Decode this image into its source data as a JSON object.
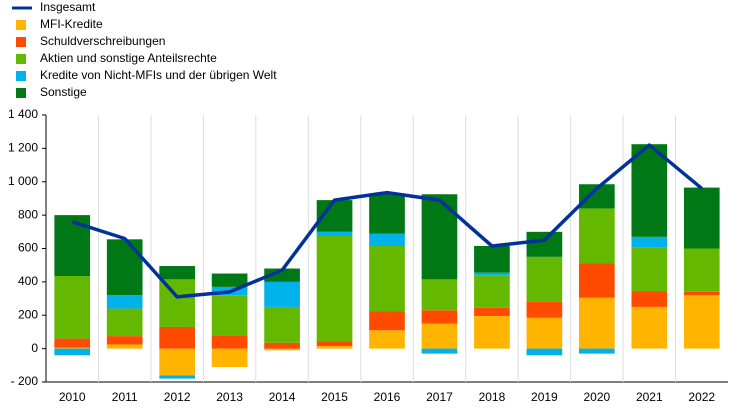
{
  "chart_data": {
    "type": "bar",
    "stacked": true,
    "categories": [
      "2010",
      "2011",
      "2012",
      "2013",
      "2014",
      "2015",
      "2016",
      "2017",
      "2018",
      "2019",
      "2020",
      "2021",
      "2022"
    ],
    "series": [
      {
        "name": "Insgesamt",
        "type": "line",
        "color": "#003299",
        "values": [
          760,
          660,
          310,
          340,
          470,
          890,
          935,
          890,
          615,
          650,
          960,
          1220,
          960
        ]
      },
      {
        "name": "MFI-Kredite",
        "color": "#ffb400",
        "values": [
          5,
          25,
          -160,
          -110,
          -10,
          15,
          110,
          150,
          195,
          185,
          305,
          250,
          320
        ]
      },
      {
        "name": "Schuldverschreibungen",
        "color": "#ff4b00",
        "values": [
          55,
          50,
          130,
          80,
          35,
          30,
          115,
          80,
          50,
          95,
          205,
          95,
          20
        ]
      },
      {
        "name": "Aktien und sonstige Anteilsrechte",
        "color": "#65b800",
        "values": [
          375,
          165,
          285,
          240,
          215,
          630,
          390,
          185,
          195,
          270,
          330,
          260,
          260
        ]
      },
      {
        "name": "Kredite von Nicht-MFIs und der übrigen Welt",
        "color": "#00b1ea",
        "values": [
          -40,
          80,
          -20,
          50,
          150,
          25,
          75,
          -30,
          15,
          -40,
          -30,
          65,
          0
        ]
      },
      {
        "name": "Sonstige",
        "color": "#007816",
        "values": [
          365,
          335,
          80,
          80,
          80,
          190,
          240,
          510,
          160,
          150,
          145,
          555,
          365
        ]
      }
    ],
    "ylim": [
      -200,
      1400
    ],
    "yticks": [
      {
        "value": -200,
        "label": "- 200"
      },
      0,
      200,
      400,
      600,
      800,
      {
        "value": 1000,
        "label": "1 000"
      },
      {
        "value": 1200,
        "label": "1 200"
      },
      {
        "value": 1400,
        "label": "1 400"
      }
    ]
  }
}
